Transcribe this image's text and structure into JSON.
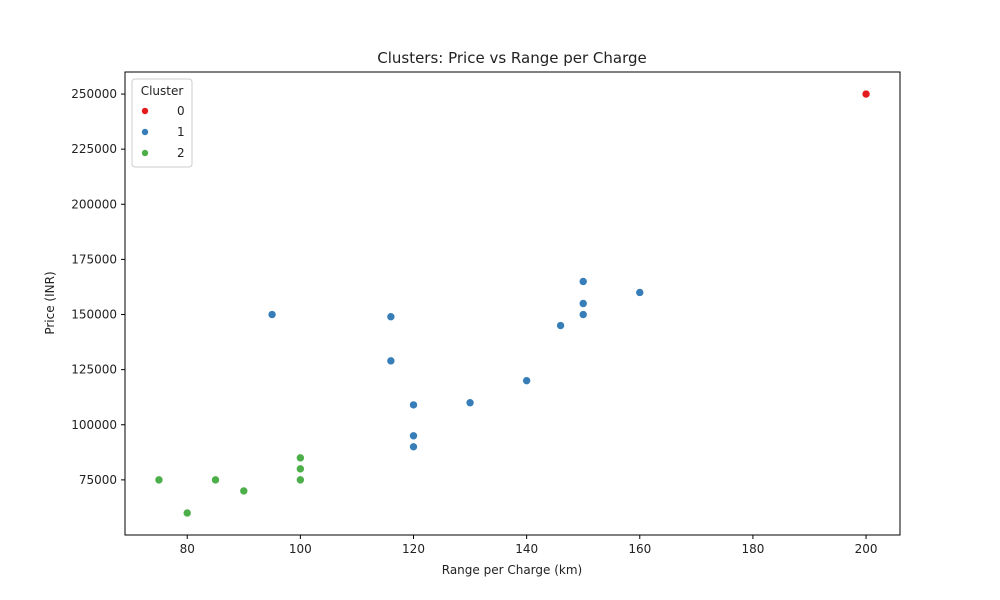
{
  "chart_data": {
    "type": "scatter",
    "title": "Clusters: Price vs Range per Charge",
    "xlabel": "Range per Charge (km)",
    "ylabel": "Price (INR)",
    "xlim": [
      69,
      206
    ],
    "ylim": [
      50000,
      260000
    ],
    "xticks": [
      80,
      100,
      120,
      140,
      160,
      180,
      200
    ],
    "yticks": [
      75000,
      100000,
      125000,
      150000,
      175000,
      200000,
      225000,
      250000
    ],
    "grid": false,
    "legend": {
      "title": "Cluster",
      "placement": "top-left"
    },
    "series": [
      {
        "name": "0",
        "color": "#e41a1c",
        "points": [
          [
            200,
            250000
          ]
        ]
      },
      {
        "name": "1",
        "color": "#377eb8",
        "points": [
          [
            150,
            165000
          ],
          [
            160,
            160000
          ],
          [
            150,
            155000
          ],
          [
            150,
            150000
          ],
          [
            95,
            150000
          ],
          [
            116,
            149000
          ],
          [
            146,
            145000
          ],
          [
            116,
            129000
          ],
          [
            140,
            120000
          ],
          [
            130,
            110000
          ],
          [
            120,
            109000
          ],
          [
            120,
            95000
          ],
          [
            120,
            90000
          ]
        ]
      },
      {
        "name": "2",
        "color": "#4daf4a",
        "points": [
          [
            100,
            85000
          ],
          [
            100,
            80000
          ],
          [
            100,
            75000
          ],
          [
            75,
            75000
          ],
          [
            85,
            75000
          ],
          [
            90,
            70000
          ],
          [
            80,
            60000
          ]
        ]
      }
    ]
  }
}
